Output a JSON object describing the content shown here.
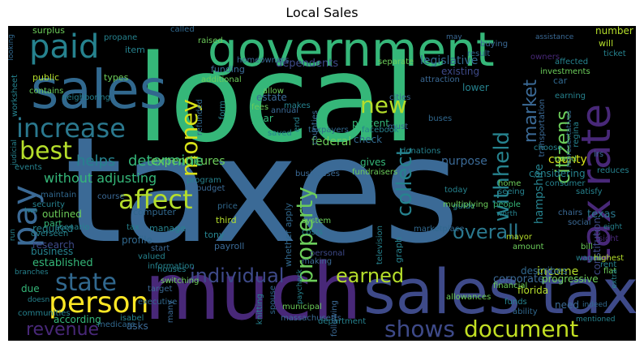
{
  "title": "Local Sales",
  "colors": {
    "background": "#000000",
    "green": "#35b779",
    "blue": "#3b6a96",
    "purple": "#482878",
    "teal": "#26828e",
    "yellowgreen": "#b5de2b",
    "lime": "#6ccd5a"
  },
  "words": [
    "taxes",
    "local",
    "much",
    "sales tax",
    "government",
    "sales",
    "paid",
    "increase",
    "tax rate",
    "pay",
    "person",
    "state",
    "individual",
    "affect",
    "best",
    "revenue",
    "document",
    "shows",
    "earned",
    "overall",
    "collect",
    "property",
    "money",
    "new",
    "withheld",
    "citizens",
    "market",
    "determine",
    "helps",
    "without adjusting",
    "expenditures",
    "hampshire",
    "legislative",
    "dependents",
    "federal",
    "county",
    "purpose",
    "texas",
    "research",
    "required",
    "outlined",
    "established",
    "business",
    "profile",
    "according",
    "asks",
    "income",
    "corporate",
    "florida",
    "progressive",
    "need",
    "describes",
    "constitution",
    "considering",
    "percent",
    "check",
    "gives",
    "estate",
    "year",
    "lower",
    "existing",
    "item",
    "public",
    "types",
    "surplus",
    "security",
    "part",
    "computer",
    "manage",
    "third",
    "tony",
    "payroll",
    "whether apply",
    "graph",
    "due",
    "car",
    "number",
    "will",
    "owners",
    "ticket",
    "rent",
    "bill",
    "wages",
    "ability",
    "flat",
    "highest",
    "sight",
    "social",
    "financial",
    "allowances",
    "funds",
    "chairs",
    "mayor",
    "people",
    "amount",
    "guide",
    "seeing",
    "home",
    "today",
    "multiplying",
    "marketplace",
    "television",
    "personal",
    "making",
    "costs",
    "system",
    "fundraisers",
    "businesses",
    "facebook",
    "transportation",
    "donations",
    "attraction",
    "allow",
    "makes",
    "fees",
    "saved",
    "annual",
    "refunded",
    "form",
    "funding",
    "additional",
    "information",
    "start",
    "valued",
    "switching",
    "target",
    "houses",
    "executive",
    "municipal",
    "massachusetts",
    "department",
    "following",
    "knitting",
    "spouse",
    "many",
    "isabel",
    "medicare",
    "communities",
    "overseen",
    "scenario",
    "maintain",
    "course",
    "program",
    "budget",
    "price",
    "tax",
    "events",
    "contains",
    "neighboring",
    "worksheet",
    "looking",
    "propane",
    "raised",
    "homeowners",
    "separate",
    "result",
    "affected",
    "called",
    "buying",
    "investments",
    "earning",
    "regina",
    "consumer",
    "assistance",
    "owed",
    "choose",
    "irs",
    "reduces",
    "end",
    "taxpayers",
    "counties",
    "buses",
    "must",
    "cities",
    "satisfy",
    "representatives",
    "extra",
    "mentioned",
    "paycheck",
    "eight",
    "branches",
    "doesn",
    "indeed",
    "worth",
    "two",
    "may",
    "judicial",
    "run"
  ]
}
